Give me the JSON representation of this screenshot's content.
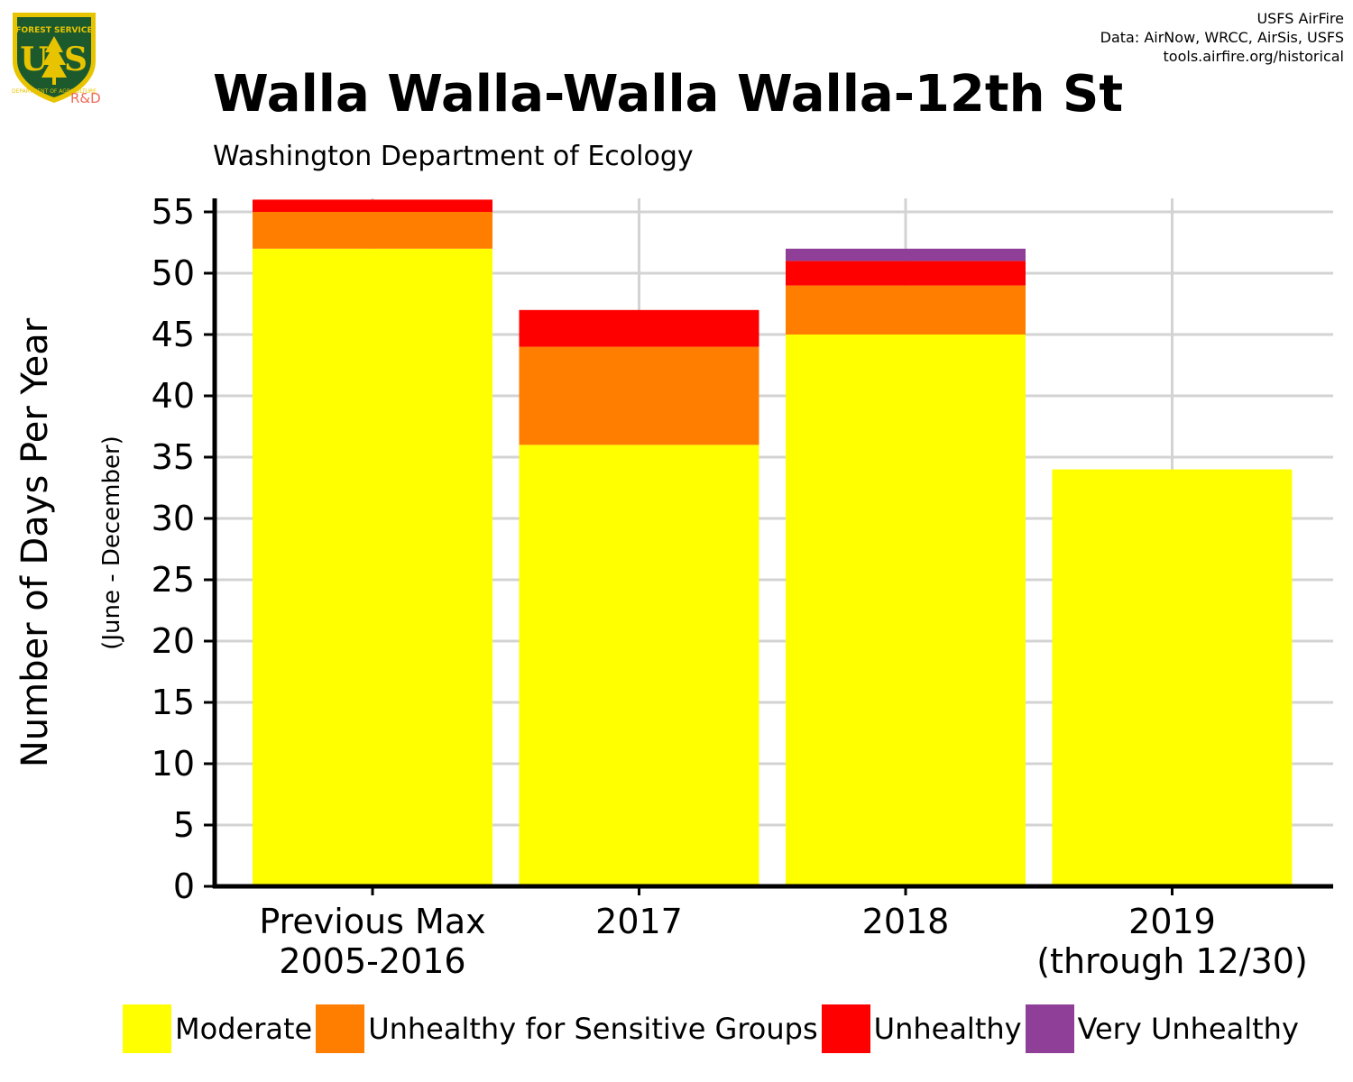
{
  "header": {
    "credits": [
      "USFS AirFire",
      "Data: AirNow, WRCC, AirSis, USFS",
      "tools.airfire.org/historical"
    ],
    "logo_text": "R&D",
    "logo_icon": "usfs-shield-icon"
  },
  "chart_data": {
    "type": "bar",
    "stacked": true,
    "title": "Walla Walla-Walla Walla-12th St",
    "subtitle": "Washington Department of Ecology",
    "ylabel": "Number of Days Per Year",
    "ylabel_sub": "(June - December)",
    "xlabel": "",
    "ylim": [
      0,
      56
    ],
    "yticks": [
      0,
      5,
      10,
      15,
      20,
      25,
      30,
      35,
      40,
      45,
      50,
      55
    ],
    "grid": true,
    "legend_position": "bottom",
    "categories": [
      [
        "Previous Max",
        "2005-2016"
      ],
      [
        "2017"
      ],
      [
        "2018"
      ],
      [
        "2019",
        "(through 12/30)"
      ]
    ],
    "series": [
      {
        "name": "Moderate",
        "color": "#FFFF00",
        "values": [
          52,
          36,
          45,
          34
        ]
      },
      {
        "name": "Unhealthy for Sensitive Groups",
        "color": "#FF7E00",
        "values": [
          3,
          8,
          4,
          0
        ]
      },
      {
        "name": "Unhealthy",
        "color": "#FF0000",
        "values": [
          1,
          3,
          2,
          0
        ]
      },
      {
        "name": "Very Unhealthy",
        "color": "#8F3F97",
        "values": [
          0,
          0,
          1,
          0
        ]
      }
    ]
  }
}
